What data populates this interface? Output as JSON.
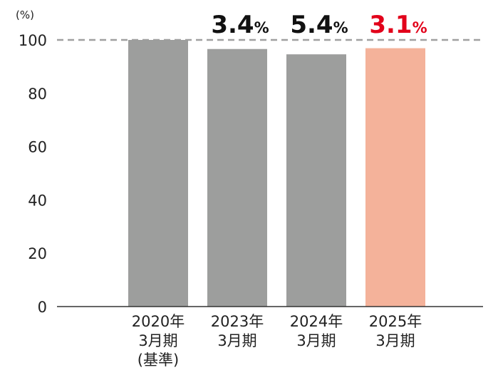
{
  "chart_data": {
    "type": "bar",
    "unit_label": "(%)",
    "ylim": [
      0,
      100
    ],
    "yticks": [
      "0",
      "20",
      "40",
      "60",
      "80",
      "100"
    ],
    "reference_line": 100,
    "grid": false,
    "categories": [
      {
        "lines": [
          "2020年",
          "3月期",
          "(基準)"
        ]
      },
      {
        "lines": [
          "2023年",
          "3月期"
        ]
      },
      {
        "lines": [
          "2024年",
          "3月期"
        ]
      },
      {
        "lines": [
          "2025年",
          "3月期"
        ]
      }
    ],
    "values": [
      100,
      96.6,
      94.6,
      96.9
    ],
    "annotations": [
      null,
      {
        "value": "3.4",
        "unit": "%"
      },
      {
        "value": "5.4",
        "unit": "%"
      },
      {
        "value": "3.1",
        "unit": "%"
      }
    ],
    "colors": {
      "bar": "#9d9e9d",
      "highlight_bar": "#f4b29a",
      "highlight_text": "#e2001a",
      "text": "#111111",
      "reference_line": "#a0a0a0",
      "axis": "#333333"
    },
    "highlight_index": 3
  }
}
